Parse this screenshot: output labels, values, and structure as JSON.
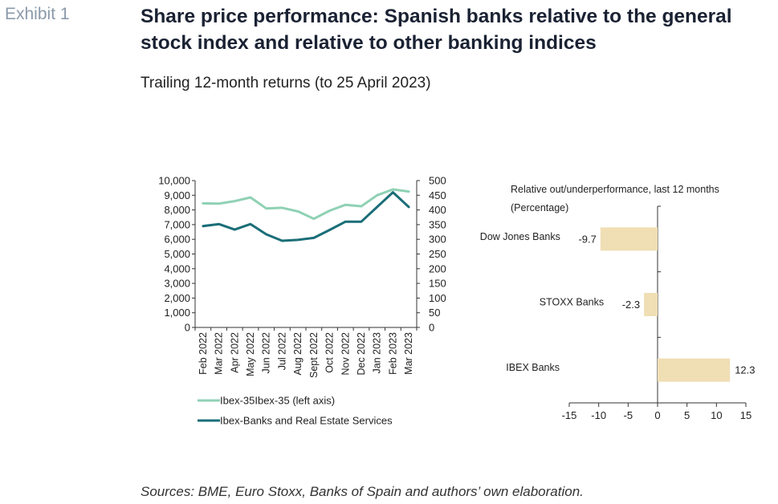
{
  "header": {
    "exhibit": "Exhibit 1",
    "title": "Share price performance: Spanish banks relative to the general stock index and relative to other banking indices",
    "subtitle": "Trailing 12-month returns (to 25 April 2023)"
  },
  "footer": {
    "source": "Sources: BME, Euro Stoxx, Banks of Spain and authors’ own elaboration."
  },
  "colors": {
    "ibex35": "#8fd1b4",
    "ibex_banks": "#1a6e78",
    "bar": "#f0deb4",
    "axis": "#333333"
  },
  "chart_data": [
    {
      "type": "line",
      "x": [
        "Feb 2022",
        "Mar 2022",
        "Apr 2022",
        "May 2022",
        "Jun 2022",
        "Jul 2022",
        "Aug 2022",
        "Sept 2022",
        "Oct 2022",
        "Nov 2022",
        "Dec 2022",
        "Jan 2023",
        "Feb 2023",
        "Mar 2023"
      ],
      "y_left_ticks": [
        "0",
        "1,000",
        "2,000",
        "3,000",
        "4,000",
        "5,000",
        "6,000",
        "7,000",
        "8,000",
        "9,000",
        "10,000"
      ],
      "y_right_ticks": [
        "0",
        "50",
        "100",
        "150",
        "200",
        "250",
        "300",
        "350",
        "400",
        "450",
        "500"
      ],
      "ylim_left": [
        0,
        10000
      ],
      "ylim_right": [
        0,
        500
      ],
      "series": [
        {
          "name": "Ibex-35Ibex-35 (left axis)",
          "axis": "left",
          "values": [
            8450,
            8430,
            8600,
            8850,
            8100,
            8150,
            7900,
            7400,
            7950,
            8350,
            8250,
            9000,
            9400,
            9250
          ]
        },
        {
          "name": "Ibex-Banks and Real Estate Services",
          "axis": "right",
          "values": [
            345,
            352,
            333,
            352,
            317,
            295,
            298,
            305,
            332,
            360,
            360,
            410,
            460,
            410
          ]
        }
      ],
      "legend_position": "bottom-left",
      "grid": false
    },
    {
      "type": "bar",
      "orientation": "horizontal",
      "title": "Relative out/underperformance, last 12 months",
      "subtitle": "(Percentage)",
      "categories": [
        "Dow Jones Banks",
        "STOXX Banks",
        "IBEX Banks"
      ],
      "values": [
        -9.7,
        -2.3,
        12.3
      ],
      "value_labels": [
        "-9.7",
        "-2.3",
        "12.3"
      ],
      "x_ticks": [
        "-15",
        "-10",
        "-5",
        "0",
        "5",
        "10",
        "15"
      ],
      "xlim": [
        -15,
        15
      ],
      "grid": false
    }
  ]
}
